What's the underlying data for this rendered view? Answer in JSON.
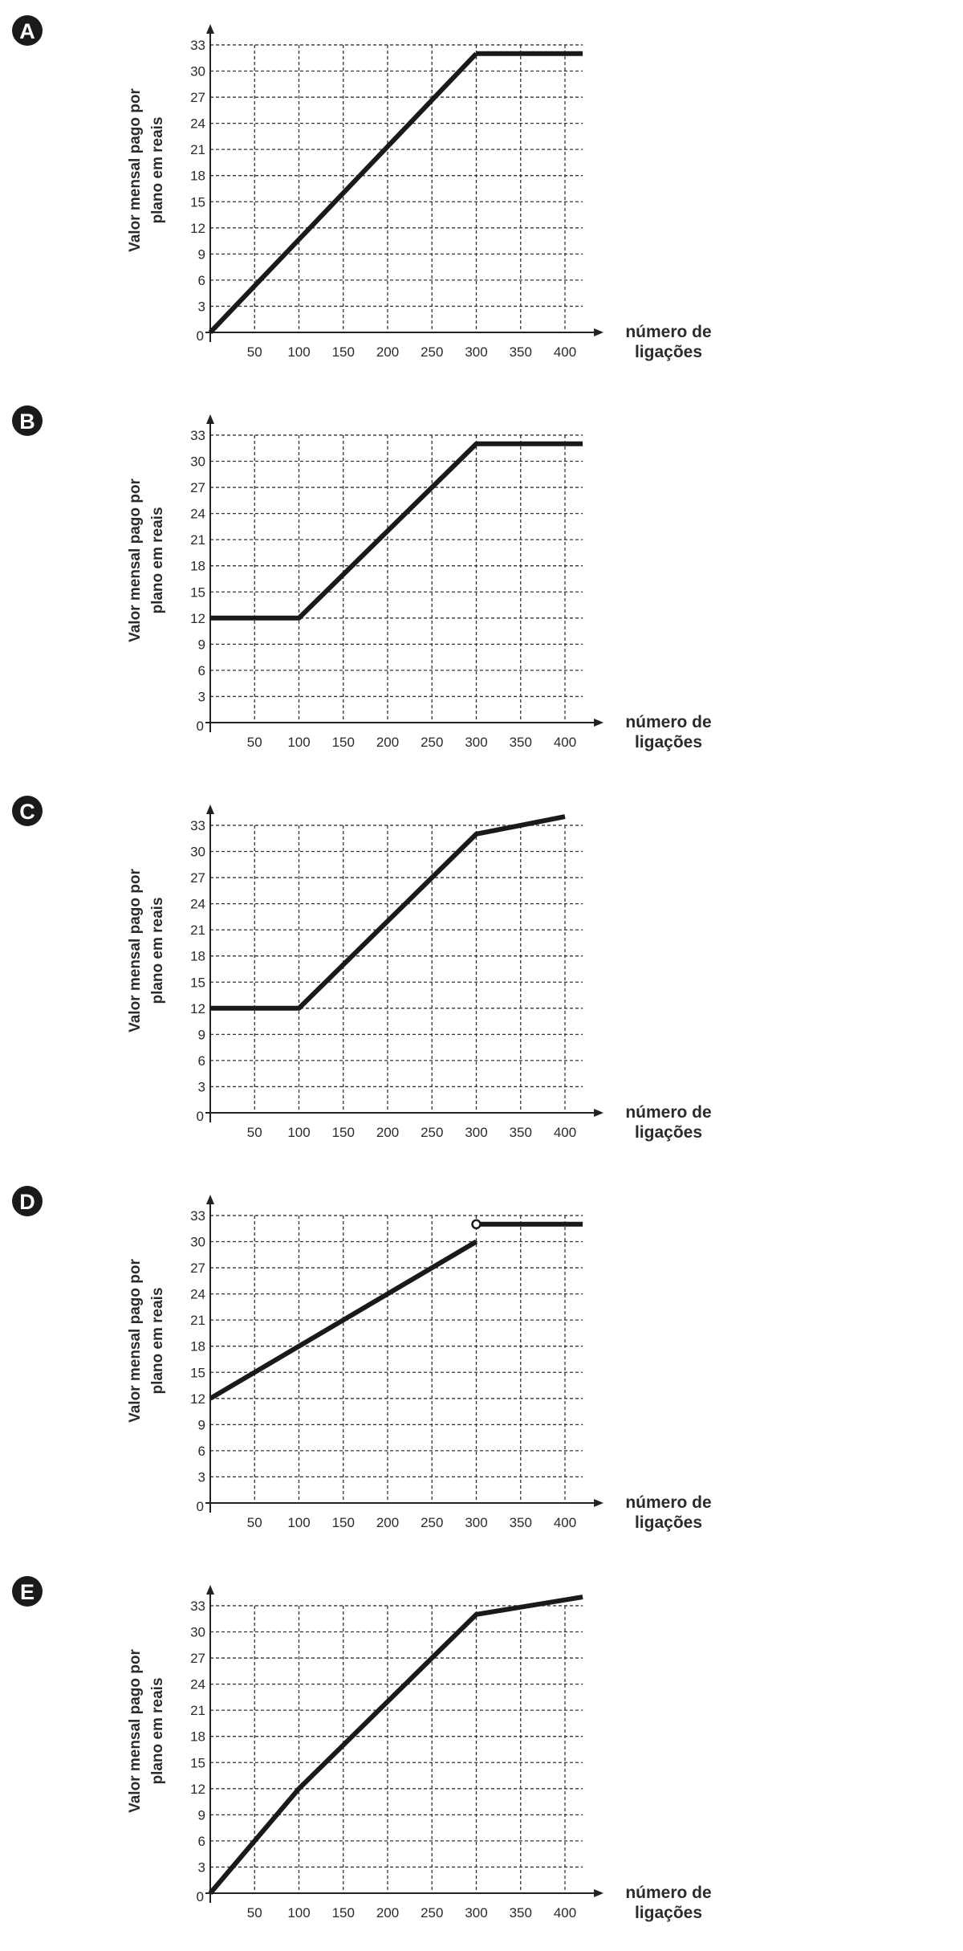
{
  "chart_data": [
    {
      "type": "line",
      "option": "A",
      "ylabel": [
        "Valor mensal pago por",
        "plano em reais"
      ],
      "xlabel": [
        "número de",
        "ligações"
      ],
      "origin_label": "0",
      "xticks": [
        50,
        100,
        150,
        200,
        250,
        300,
        350,
        400
      ],
      "yticks": [
        3,
        6,
        9,
        12,
        15,
        18,
        21,
        24,
        27,
        30,
        33
      ],
      "xlim": [
        0,
        420
      ],
      "ylim": [
        0,
        33
      ],
      "segments": [
        {
          "x": [
            0,
            300
          ],
          "y": [
            0,
            32
          ]
        },
        {
          "x": [
            300,
            420
          ],
          "y": [
            32,
            32
          ]
        }
      ],
      "open_points": []
    },
    {
      "type": "line",
      "option": "B",
      "ylabel": [
        "Valor mensal pago por",
        "plano em reais"
      ],
      "xlabel": [
        "número de",
        "ligações"
      ],
      "origin_label": "0",
      "xticks": [
        50,
        100,
        150,
        200,
        250,
        300,
        350,
        400
      ],
      "yticks": [
        3,
        6,
        9,
        12,
        15,
        18,
        21,
        24,
        27,
        30,
        33
      ],
      "xlim": [
        0,
        420
      ],
      "ylim": [
        0,
        33
      ],
      "segments": [
        {
          "x": [
            0,
            100,
            300,
            420
          ],
          "y": [
            12,
            12,
            32,
            32
          ]
        }
      ],
      "open_points": []
    },
    {
      "type": "line",
      "option": "C",
      "ylabel": [
        "Valor mensal pago por",
        "plano em reais"
      ],
      "xlabel": [
        "número de",
        "ligações"
      ],
      "origin_label": "0",
      "xticks": [
        50,
        100,
        150,
        200,
        250,
        300,
        350,
        400
      ],
      "yticks": [
        3,
        6,
        9,
        12,
        15,
        18,
        21,
        24,
        27,
        30,
        33
      ],
      "xlim": [
        0,
        420
      ],
      "ylim": [
        0,
        33
      ],
      "segments": [
        {
          "x": [
            0,
            100,
            300,
            400
          ],
          "y": [
            12,
            12,
            32,
            34
          ]
        }
      ],
      "open_points": []
    },
    {
      "type": "line",
      "option": "D",
      "ylabel": [
        "Valor mensal pago por",
        "plano em reais"
      ],
      "xlabel": [
        "número de",
        "ligações"
      ],
      "origin_label": "0",
      "xticks": [
        50,
        100,
        150,
        200,
        250,
        300,
        350,
        400
      ],
      "yticks": [
        3,
        6,
        9,
        12,
        15,
        18,
        21,
        24,
        27,
        30,
        33
      ],
      "xlim": [
        0,
        420
      ],
      "ylim": [
        0,
        33
      ],
      "segments": [
        {
          "x": [
            0,
            300
          ],
          "y": [
            12,
            30
          ]
        },
        {
          "x": [
            300,
            420
          ],
          "y": [
            32,
            32
          ]
        }
      ],
      "open_points": [
        {
          "x": 300,
          "y": 32
        }
      ]
    },
    {
      "type": "line",
      "option": "E",
      "ylabel": [
        "Valor mensal pago por",
        "plano em reais"
      ],
      "xlabel": [
        "número de",
        "ligações"
      ],
      "origin_label": "0",
      "xticks": [
        50,
        100,
        150,
        200,
        250,
        300,
        350,
        400
      ],
      "yticks": [
        3,
        6,
        9,
        12,
        15,
        18,
        21,
        24,
        27,
        30,
        33
      ],
      "xlim": [
        0,
        420
      ],
      "ylim": [
        0,
        33
      ],
      "segments": [
        {
          "x": [
            0,
            100,
            300,
            420
          ],
          "y": [
            0,
            12,
            32,
            34
          ]
        }
      ],
      "open_points": []
    }
  ]
}
